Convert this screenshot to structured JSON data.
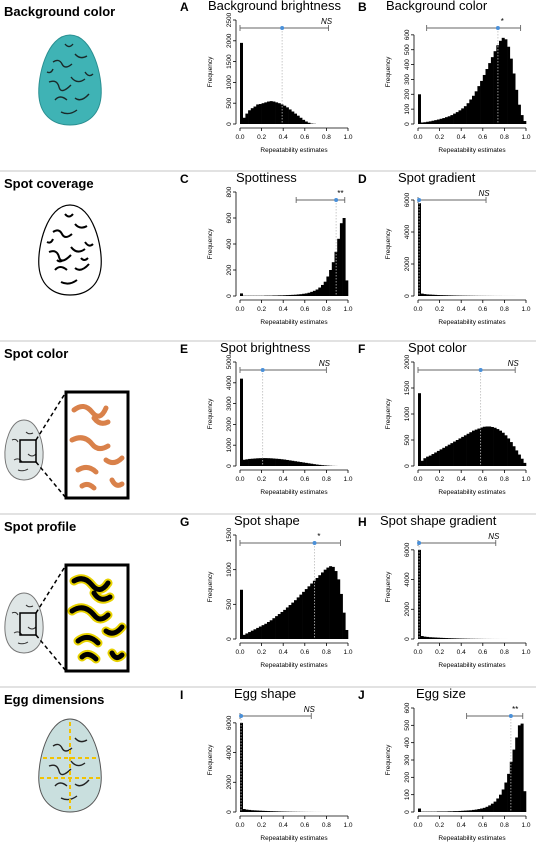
{
  "rows": [
    {
      "label": "Background color",
      "egg": "plain"
    },
    {
      "label": "Spot coverage",
      "egg": "bw"
    },
    {
      "label": "Spot color",
      "egg": "zoom-orange"
    },
    {
      "label": "Spot profile",
      "egg": "zoom-yellow"
    },
    {
      "label": "Egg dimensions",
      "egg": "dims"
    }
  ],
  "colors": {
    "bars": "#000000",
    "mean": "#4a90d9",
    "interval": "#666666",
    "egg_blue": "#3fb3b5"
  },
  "chart_data": [
    {
      "type": "bar",
      "letter": "A",
      "title": "Background brightness",
      "xlabel": "Repeatability estimates",
      "ylabel": "Frequency",
      "xlim": [
        0,
        1
      ],
      "ylim": [
        0,
        2500
      ],
      "yticks": [
        0,
        500,
        1000,
        1500,
        2000,
        2500
      ],
      "xticks": [
        0,
        0.2,
        0.4,
        0.6,
        0.8,
        1.0
      ],
      "values": [
        1950,
        150,
        250,
        330,
        380,
        420,
        470,
        480,
        500,
        520,
        540,
        550,
        540,
        520,
        500,
        470,
        440,
        400,
        350,
        300,
        250,
        200,
        150,
        100,
        60,
        30,
        10,
        5,
        0,
        0,
        0,
        0,
        0,
        0,
        0,
        0,
        0,
        0,
        0,
        0
      ],
      "mean": 0.39,
      "ci": [
        0.0,
        0.82
      ],
      "sig": "NS"
    },
    {
      "type": "bar",
      "letter": "B",
      "title": "Background color",
      "xlabel": "Repeatability estimates",
      "ylabel": "Frequency",
      "xlim": [
        0,
        1
      ],
      "ylim": [
        0,
        700
      ],
      "yticks": [
        0,
        100,
        200,
        300,
        400,
        500,
        600
      ],
      "xticks": [
        0,
        0.2,
        0.4,
        0.6,
        0.8,
        1.0
      ],
      "values": [
        200,
        10,
        12,
        15,
        18,
        22,
        26,
        30,
        35,
        40,
        46,
        52,
        60,
        70,
        80,
        92,
        105,
        120,
        140,
        165,
        190,
        220,
        255,
        290,
        330,
        370,
        410,
        450,
        490,
        530,
        560,
        580,
        570,
        520,
        440,
        340,
        230,
        130,
        60,
        20
      ],
      "mean": 0.74,
      "ci": [
        0.08,
        0.95
      ],
      "sig": "*"
    },
    {
      "type": "bar",
      "letter": "C",
      "title": "Spottiness",
      "xlabel": "Repeatability estimates",
      "ylabel": "Frequency",
      "xlim": [
        0,
        1
      ],
      "ylim": [
        0,
        800
      ],
      "yticks": [
        0,
        200,
        400,
        600,
        800
      ],
      "xticks": [
        0,
        0.2,
        0.4,
        0.6,
        0.8,
        1.0
      ],
      "values": [
        20,
        2,
        2,
        2,
        2,
        2,
        2,
        2,
        2,
        3,
        3,
        3,
        4,
        4,
        5,
        5,
        6,
        7,
        8,
        9,
        10,
        12,
        14,
        17,
        20,
        25,
        32,
        40,
        50,
        65,
        85,
        110,
        150,
        200,
        260,
        340,
        440,
        560,
        600,
        120
      ],
      "mean": 0.89,
      "ci": [
        0.52,
        0.97
      ],
      "sig": "**"
    },
    {
      "type": "bar",
      "letter": "D",
      "title": "Spot gradient",
      "xlabel": "Repeatability estimates",
      "ylabel": "Frequency",
      "xlim": [
        0,
        1
      ],
      "ylim": [
        0,
        6500
      ],
      "yticks": [
        0,
        2000,
        4000,
        6000
      ],
      "xticks": [
        0,
        0.2,
        0.4,
        0.6,
        0.8,
        1.0
      ],
      "values": [
        5800,
        150,
        120,
        100,
        90,
        80,
        70,
        60,
        55,
        50,
        45,
        40,
        36,
        32,
        28,
        25,
        22,
        20,
        18,
        16,
        14,
        12,
        10,
        9,
        8,
        7,
        6,
        5,
        4,
        3,
        3,
        2,
        2,
        1,
        1,
        1,
        0,
        0,
        0,
        0
      ],
      "mean": 0.01,
      "ci": [
        0.0,
        0.63
      ],
      "sig": "NS"
    },
    {
      "type": "bar",
      "letter": "E",
      "title": "Spot brightness",
      "xlabel": "Repeatability estimates",
      "ylabel": "Frequency",
      "xlim": [
        0,
        1
      ],
      "ylim": [
        0,
        5000
      ],
      "yticks": [
        0,
        1000,
        2000,
        3000,
        4000,
        5000
      ],
      "xticks": [
        0,
        0.2,
        0.4,
        0.6,
        0.8,
        1.0
      ],
      "values": [
        4200,
        300,
        320,
        340,
        350,
        360,
        370,
        375,
        380,
        380,
        375,
        370,
        360,
        350,
        340,
        325,
        310,
        290,
        270,
        250,
        230,
        210,
        190,
        170,
        150,
        130,
        110,
        90,
        70,
        55,
        40,
        30,
        20,
        12,
        6,
        3,
        0,
        0,
        0,
        0
      ],
      "mean": 0.21,
      "ci": [
        0.0,
        0.8
      ],
      "sig": "NS"
    },
    {
      "type": "bar",
      "letter": "F",
      "title": "Spot color",
      "xlabel": "Repeatability estimates",
      "ylabel": "Frequency",
      "xlim": [
        0,
        1
      ],
      "ylim": [
        0,
        2000
      ],
      "yticks": [
        0,
        500,
        1000,
        1500,
        2000
      ],
      "xticks": [
        0,
        0.2,
        0.4,
        0.6,
        0.8,
        1.0
      ],
      "values": [
        1400,
        100,
        150,
        180,
        200,
        230,
        260,
        290,
        320,
        350,
        380,
        410,
        440,
        470,
        500,
        530,
        560,
        590,
        620,
        650,
        680,
        700,
        720,
        740,
        755,
        760,
        760,
        750,
        735,
        710,
        680,
        640,
        590,
        530,
        460,
        380,
        300,
        220,
        140,
        60
      ],
      "mean": 0.58,
      "ci": [
        0.0,
        0.9
      ],
      "sig": "NS"
    },
    {
      "type": "bar",
      "letter": "G",
      "title": "Spot shape",
      "xlabel": "Repeatability estimates",
      "ylabel": "Frequency",
      "xlim": [
        0,
        1
      ],
      "ylim": [
        0,
        1500
      ],
      "yticks": [
        0,
        500,
        1000,
        1500
      ],
      "xticks": [
        0,
        0.2,
        0.4,
        0.6,
        0.8,
        1.0
      ],
      "values": [
        710,
        60,
        80,
        100,
        120,
        140,
        160,
        180,
        200,
        220,
        245,
        270,
        300,
        330,
        360,
        390,
        420,
        455,
        490,
        525,
        560,
        600,
        640,
        680,
        720,
        760,
        800,
        840,
        880,
        920,
        960,
        1000,
        1030,
        1050,
        1040,
        980,
        860,
        650,
        380,
        130
      ],
      "mean": 0.69,
      "ci": [
        0.0,
        0.93
      ],
      "sig": "*"
    },
    {
      "type": "bar",
      "letter": "H",
      "title": "Spot shape gradient",
      "xlabel": "Repeatability estimates",
      "ylabel": "Frequency",
      "xlim": [
        0,
        1
      ],
      "ylim": [
        0,
        7000
      ],
      "yticks": [
        0,
        2000,
        4000,
        6000
      ],
      "xticks": [
        0,
        0.2,
        0.4,
        0.6,
        0.8,
        1.0
      ],
      "values": [
        6000,
        200,
        160,
        140,
        120,
        110,
        100,
        90,
        80,
        72,
        64,
        56,
        50,
        44,
        38,
        32,
        28,
        24,
        20,
        17,
        14,
        12,
        10,
        8,
        6,
        5,
        4,
        3,
        2,
        2,
        1,
        1,
        1,
        0,
        0,
        0,
        0,
        0,
        0,
        0
      ],
      "mean": 0.01,
      "ci": [
        0.0,
        0.72
      ],
      "sig": "NS"
    },
    {
      "type": "bar",
      "letter": "I",
      "title": "Egg shape",
      "xlabel": "Repeatability estimates",
      "ylabel": "Frequency",
      "xlim": [
        0,
        1
      ],
      "ylim": [
        0,
        7000
      ],
      "yticks": [
        0,
        2000,
        4000,
        6000
      ],
      "xticks": [
        0,
        0.2,
        0.4,
        0.6,
        0.8,
        1.0
      ],
      "values": [
        6000,
        200,
        160,
        140,
        120,
        110,
        100,
        90,
        80,
        72,
        64,
        56,
        50,
        44,
        38,
        32,
        28,
        24,
        20,
        17,
        14,
        12,
        10,
        8,
        6,
        5,
        4,
        3,
        2,
        2,
        1,
        1,
        1,
        0,
        0,
        0,
        0,
        0,
        0,
        0
      ],
      "mean": 0.01,
      "ci": [
        0.0,
        0.66
      ],
      "sig": "NS"
    },
    {
      "type": "bar",
      "letter": "J",
      "title": "Egg size",
      "xlabel": "Repeatability estimates",
      "ylabel": "Frequency",
      "xlim": [
        0,
        1
      ],
      "ylim": [
        0,
        600
      ],
      "yticks": [
        0,
        100,
        200,
        300,
        400,
        500,
        600
      ],
      "xticks": [
        0,
        0.2,
        0.4,
        0.6,
        0.8,
        1.0
      ],
      "values": [
        20,
        2,
        2,
        2,
        2,
        2,
        2,
        3,
        3,
        3,
        3,
        4,
        4,
        5,
        5,
        6,
        7,
        8,
        9,
        10,
        12,
        14,
        17,
        20,
        24,
        30,
        38,
        48,
        60,
        78,
        100,
        130,
        170,
        220,
        290,
        360,
        430,
        500,
        510,
        120
      ],
      "mean": 0.86,
      "ci": [
        0.45,
        0.97
      ],
      "sig": "**"
    }
  ]
}
